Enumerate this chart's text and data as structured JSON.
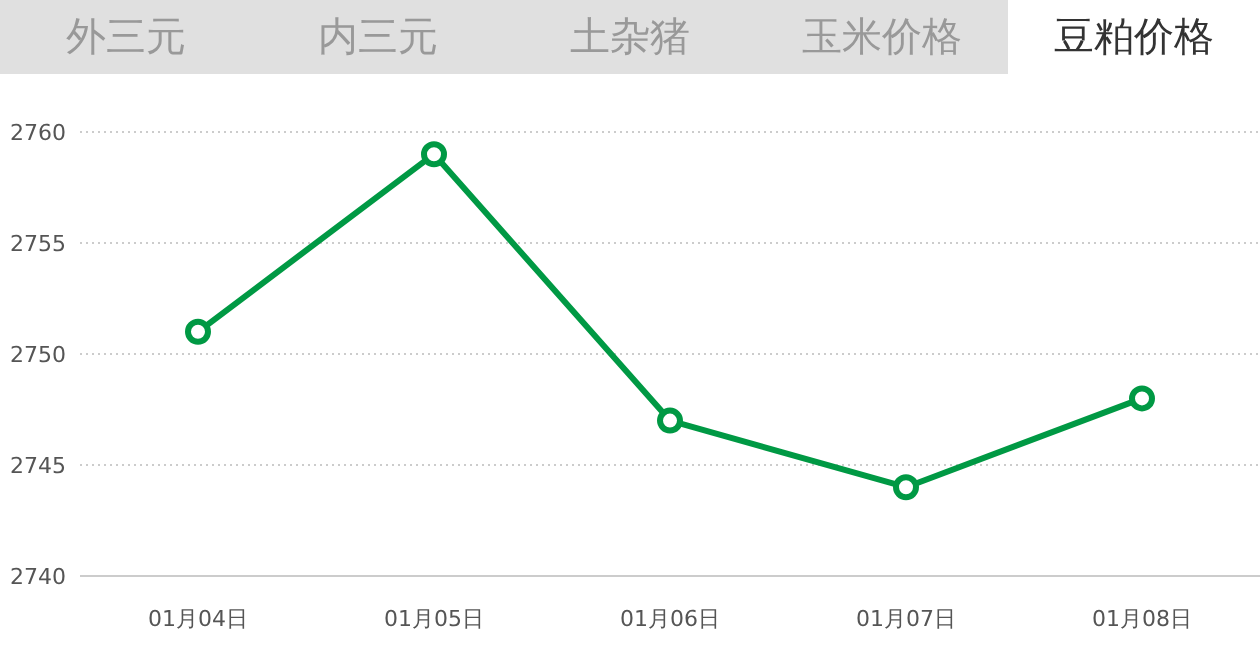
{
  "chart_data": {
    "type": "line",
    "title": "豆粕价格",
    "annotations": [
      "外三元",
      "内三元",
      "土杂猪",
      "玉米价格"
    ],
    "categories": [
      "01月04日",
      "01月05日",
      "01月06日",
      "01月07日",
      "01月08日"
    ],
    "series": [
      {
        "color": "#009944",
        "values": [
          2751,
          2759,
          2747,
          2744,
          2748
        ]
      }
    ],
    "ylim": [
      2740,
      2760
    ],
    "yticks": [
      2740,
      2745,
      2750,
      2755,
      2760
    ],
    "grid": "y",
    "marker": "circle",
    "line_style": "solid"
  }
}
